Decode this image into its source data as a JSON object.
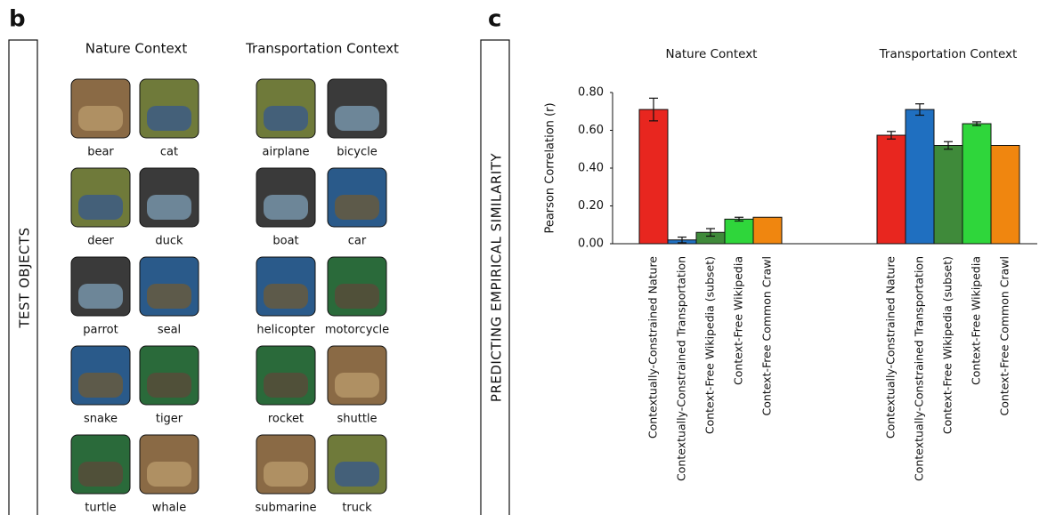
{
  "panel_b": {
    "letter": "b",
    "side_label": "TEST OBJECTS",
    "columns": [
      {
        "title": "Nature Context",
        "items": [
          "bear",
          "cat",
          "deer",
          "duck",
          "parrot",
          "seal",
          "snake",
          "tiger",
          "turtle",
          "whale"
        ]
      },
      {
        "title": "Transportation Context",
        "items": [
          "airplane",
          "bicycle",
          "boat",
          "car",
          "helicopter",
          "motorcycle",
          "rocket",
          "shuttle",
          "submarine",
          "truck"
        ]
      }
    ]
  },
  "panel_c": {
    "letter": "c",
    "side_label": "PREDICTING  EMPIRICAL  SIMILARITY"
  },
  "chart_data": [
    {
      "type": "bar",
      "title": "Nature Context",
      "ylabel": "Pearson Correlation (r)",
      "ylim": [
        0,
        0.8
      ],
      "yticks": [
        {
          "value": 0,
          "label": "0.00"
        },
        {
          "value": 0.2,
          "label": "0.20"
        },
        {
          "value": 0.4,
          "label": "0.40"
        },
        {
          "value": 0.6,
          "label": "0.60"
        },
        {
          "value": 0.8,
          "label": "0.80"
        }
      ],
      "categories": [
        "Contextually-Constrained Nature",
        "Contextually-Constrained Transportation",
        "Context-Free Wikipedia (subset)",
        "Context-Free Wikipedia",
        "Context-Free Common Crawl"
      ],
      "values": [
        0.71,
        0.02,
        0.06,
        0.13,
        0.14
      ],
      "errors": [
        0.06,
        0.015,
        0.02,
        0.01,
        null
      ],
      "colors": [
        "#e8261f",
        "#1f6fc0",
        "#3f8a3a",
        "#2fd63b",
        "#f0860f"
      ]
    },
    {
      "type": "bar",
      "title": "Transportation Context",
      "categories": [
        "Contextually-Constrained Nature",
        "Contextually-Constrained Transportation",
        "Context-Free Wikipedia (subset)",
        "Context-Free Wikipedia",
        "Context-Free Common Crawl"
      ],
      "values": [
        0.574,
        0.71,
        0.52,
        0.635,
        0.52
      ],
      "errors": [
        0.02,
        0.03,
        0.02,
        0.01,
        null
      ],
      "colors": [
        "#e8261f",
        "#1f6fc0",
        "#3f8a3a",
        "#2fd63b",
        "#f0860f"
      ]
    }
  ]
}
